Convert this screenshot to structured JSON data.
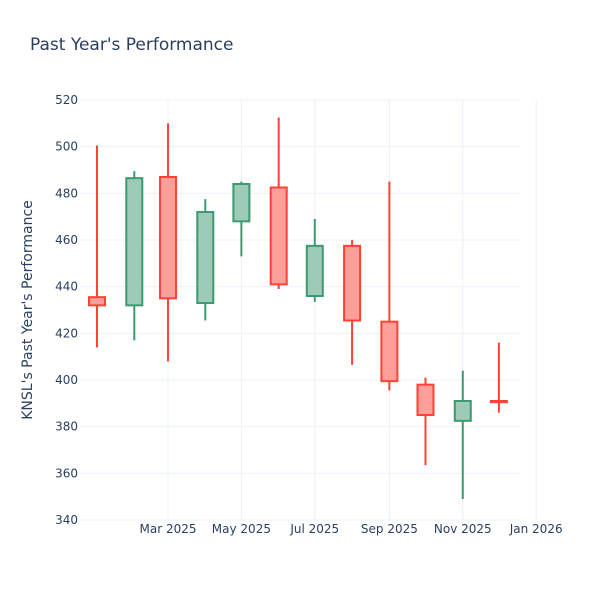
{
  "chart_data": {
    "type": "candlestick",
    "title": "Past Year's Performance",
    "xlabel": "",
    "ylabel": "KNSL's Past Year's Performance",
    "ylim": [
      340,
      520
    ],
    "y_ticks": [
      340,
      360,
      380,
      400,
      420,
      440,
      460,
      480,
      500,
      520
    ],
    "x_tick_labels": [
      "Mar 2025",
      "May 2025",
      "Jul 2025",
      "Sep 2025",
      "Nov 2025",
      "Jan 2026"
    ],
    "grid": true,
    "colors": {
      "increasing": "#3d9970",
      "increasing_fill": "#9ecab8",
      "decreasing": "#ff4136",
      "decreasing_fill": "#ff9f9a",
      "text": "#2a3f5f",
      "grid": "#ebf0f8"
    },
    "candles": [
      {
        "date": "2025-01",
        "open": 435.5,
        "high": 500.5,
        "low": 414.0,
        "close": 432.0
      },
      {
        "date": "2025-02",
        "open": 432.0,
        "high": 489.5,
        "low": 417.0,
        "close": 486.5
      },
      {
        "date": "2025-03",
        "open": 487.0,
        "high": 510.0,
        "low": 408.0,
        "close": 435.0
      },
      {
        "date": "2025-04",
        "open": 433.0,
        "high": 477.5,
        "low": 425.5,
        "close": 472.0
      },
      {
        "date": "2025-05",
        "open": 468.0,
        "high": 485.0,
        "low": 453.0,
        "close": 484.0
      },
      {
        "date": "2025-06",
        "open": 482.5,
        "high": 512.5,
        "low": 439.0,
        "close": 441.0
      },
      {
        "date": "2025-07",
        "open": 436.0,
        "high": 469.0,
        "low": 433.5,
        "close": 457.5
      },
      {
        "date": "2025-08",
        "open": 457.5,
        "high": 460.0,
        "low": 406.5,
        "close": 425.5
      },
      {
        "date": "2025-09",
        "open": 425.0,
        "high": 485.0,
        "low": 395.5,
        "close": 399.5
      },
      {
        "date": "2025-10",
        "open": 398.0,
        "high": 401.0,
        "low": 363.5,
        "close": 385.0
      },
      {
        "date": "2025-11",
        "open": 382.5,
        "high": 404.0,
        "low": 349.0,
        "close": 391.0
      },
      {
        "date": "2025-12",
        "open": 391.0,
        "high": 416.0,
        "low": 386.0,
        "close": 390.5
      }
    ]
  }
}
